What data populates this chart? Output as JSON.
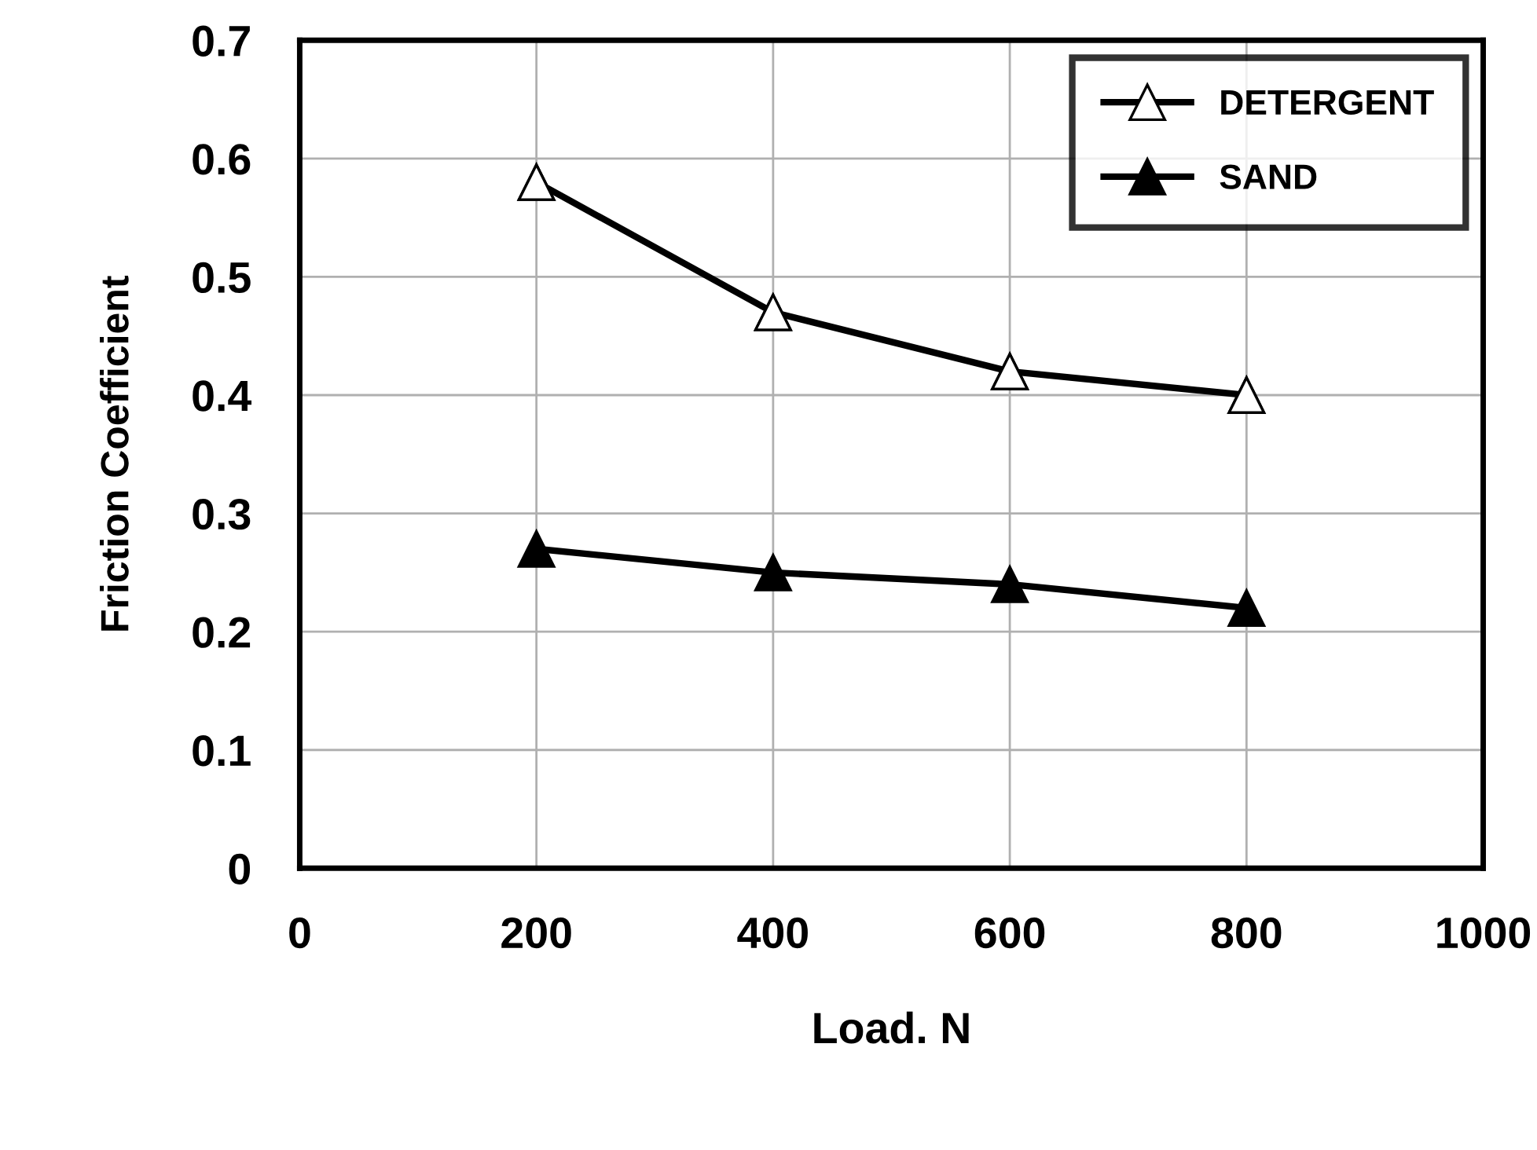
{
  "chart_data": {
    "type": "line",
    "xlabel": "Load. N",
    "ylabel": "Friction Coefficient",
    "x": [
      200,
      400,
      600,
      800
    ],
    "series": [
      {
        "name": "DETERGENT",
        "color": "#000000",
        "colors": [
          "#ffffff",
          "#ffffff",
          "#ffffff",
          "#ffffff"
        ],
        "values": [
          0.58,
          0.47,
          0.42,
          0.4
        ]
      },
      {
        "name": "SAND",
        "color": "#000000",
        "values": [
          0.27,
          0.25,
          0.24,
          0.22
        ]
      }
    ],
    "xlim": [
      0,
      1000
    ],
    "xticks": [
      0,
      200,
      400,
      600,
      800,
      1000
    ],
    "ylim": [
      0,
      0.7
    ],
    "yticks": [
      0,
      0.1,
      0.2,
      0.3,
      0.4,
      0.5,
      0.6,
      0.7
    ],
    "grid": true,
    "legend": "top right",
    "marker": "triangle",
    "line_style": "solid"
  }
}
